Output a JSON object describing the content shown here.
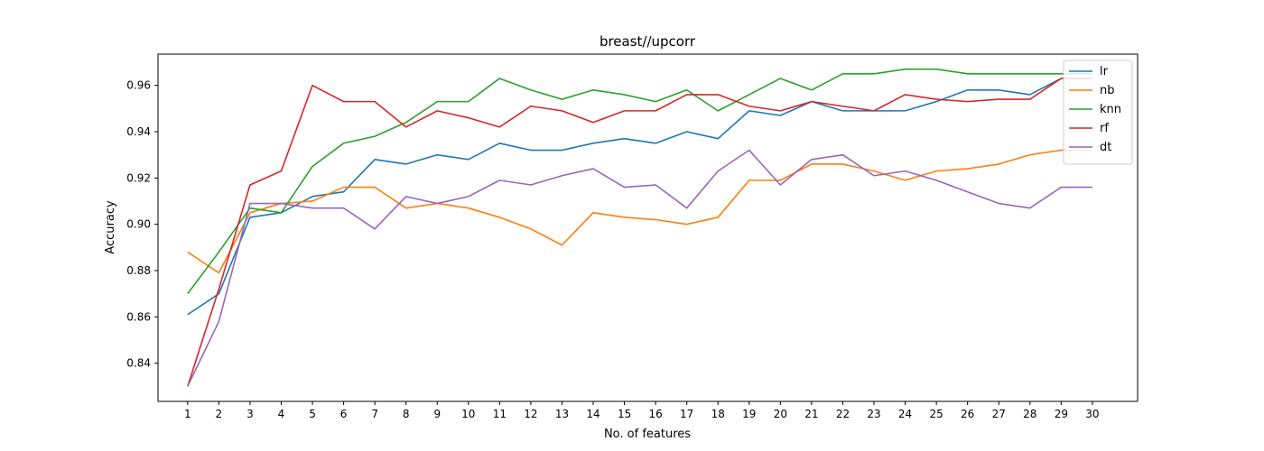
{
  "chart_data": {
    "type": "line",
    "title": "breast//upcorr",
    "xlabel": "No. of features",
    "ylabel": "Accuracy",
    "x": [
      1,
      2,
      3,
      4,
      5,
      6,
      7,
      8,
      9,
      10,
      11,
      12,
      13,
      14,
      15,
      16,
      17,
      18,
      19,
      20,
      21,
      22,
      23,
      24,
      25,
      26,
      27,
      28,
      29,
      30
    ],
    "xlim": [
      0.05,
      31.45
    ],
    "ylim": [
      0.8235,
      0.9735
    ],
    "yticks": [
      0.84,
      0.86,
      0.88,
      0.9,
      0.92,
      0.94,
      0.96
    ],
    "ytick_labels": [
      "0.84",
      "0.86",
      "0.88",
      "0.90",
      "0.92",
      "0.94",
      "0.96"
    ],
    "grid": false,
    "legend_position": "upper-right",
    "series": [
      {
        "name": "lr",
        "color": "#1f77b4",
        "values": [
          0.861,
          0.87,
          0.903,
          0.905,
          0.912,
          0.914,
          0.928,
          0.926,
          0.93,
          0.928,
          0.935,
          0.932,
          0.932,
          0.935,
          0.937,
          0.935,
          0.94,
          0.937,
          0.949,
          0.947,
          0.953,
          0.949,
          0.949,
          0.949,
          0.953,
          0.958,
          0.958,
          0.956,
          0.963,
          0.963
        ]
      },
      {
        "name": "nb",
        "color": "#ff7f0e",
        "values": [
          0.888,
          0.879,
          0.905,
          0.909,
          0.91,
          0.916,
          0.916,
          0.907,
          0.909,
          0.907,
          0.903,
          0.898,
          0.891,
          0.905,
          0.903,
          0.902,
          0.9,
          0.903,
          0.919,
          0.919,
          0.926,
          0.926,
          0.923,
          0.919,
          0.923,
          0.924,
          0.926,
          0.93,
          0.932,
          0.932
        ]
      },
      {
        "name": "knn",
        "color": "#2ca02c",
        "values": [
          0.87,
          0.888,
          0.907,
          0.905,
          0.925,
          0.935,
          0.938,
          0.944,
          0.953,
          0.953,
          0.963,
          0.958,
          0.954,
          0.958,
          0.956,
          0.953,
          0.958,
          0.949,
          0.956,
          0.963,
          0.958,
          0.965,
          0.965,
          0.967,
          0.967,
          0.965,
          0.965,
          0.965,
          0.965,
          0.965
        ]
      },
      {
        "name": "rf",
        "color": "#d62728",
        "values": [
          0.83,
          0.872,
          0.917,
          0.923,
          0.96,
          0.953,
          0.953,
          0.942,
          0.949,
          0.946,
          0.942,
          0.951,
          0.949,
          0.944,
          0.949,
          0.949,
          0.956,
          0.956,
          0.951,
          0.949,
          0.953,
          0.951,
          0.949,
          0.956,
          0.954,
          0.953,
          0.954,
          0.954,
          0.963,
          0.963
        ]
      },
      {
        "name": "dt",
        "color": "#9467bd",
        "values": [
          0.83,
          0.858,
          0.909,
          0.909,
          0.907,
          0.907,
          0.898,
          0.912,
          0.909,
          0.912,
          0.919,
          0.917,
          0.921,
          0.924,
          0.916,
          0.917,
          0.907,
          0.923,
          0.932,
          0.917,
          0.928,
          0.93,
          0.921,
          0.923,
          0.919,
          0.914,
          0.909,
          0.907,
          0.916,
          0.916
        ]
      }
    ]
  }
}
